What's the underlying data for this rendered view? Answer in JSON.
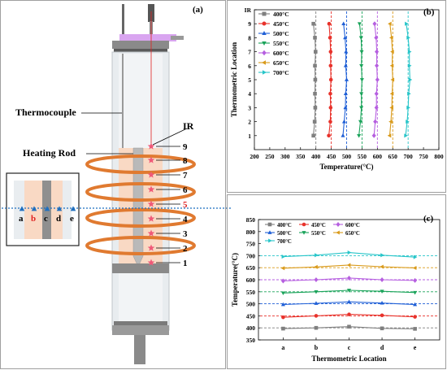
{
  "panel_a": {
    "label": "(a)",
    "thermocouple_label": "Thermocouple",
    "heating_rod_label": "Heating Rod",
    "ir_label": "IR",
    "point_numbers": [
      "1",
      "2",
      "3",
      "4",
      "5",
      "6",
      "7",
      "8",
      "9"
    ],
    "highlight_point": "5",
    "inset_letters": [
      "a",
      "b",
      "c",
      "d",
      "e"
    ],
    "highlight_letter": "b",
    "colors": {
      "coil": "#e07a30",
      "tube_fill": "#f9d9c4",
      "glass": "#e8ecef",
      "rod": "#b9b9b9",
      "star": "#f05a78",
      "highlight": "#e02020",
      "dashed_line": "#1f6fbf",
      "laser": "#e02020",
      "cap": "#d9a5f0"
    }
  },
  "panel_b": {
    "label": "(b)",
    "chart_data": {
      "type": "line",
      "orientation": "vertical profile",
      "xlabel": "Temperature(°C)",
      "ylabel": "Thermometric Location",
      "xlim": [
        200,
        800
      ],
      "x_ticks": [
        "200",
        "250",
        "300",
        "350",
        "400",
        "450",
        "500",
        "550",
        "600",
        "650",
        "700",
        "750",
        "800"
      ],
      "ylim": [
        0,
        10
      ],
      "y_ticks": [
        "1",
        "2",
        "3",
        "4",
        "5",
        "6",
        "7",
        "8",
        "9",
        "IR"
      ],
      "legend_position": "top-left",
      "reference_lines": [
        400,
        450,
        500,
        550,
        600,
        650,
        700
      ],
      "series": [
        {
          "name": "400°C",
          "color": "#7f7f7f",
          "marker": "square",
          "x": [
            392,
            396,
            398,
            397,
            398,
            397,
            399,
            397,
            392
          ],
          "y": [
            1,
            2,
            3,
            4,
            5,
            6,
            7,
            8,
            9
          ]
        },
        {
          "name": "450°C",
          "color": "#e8322b",
          "marker": "circle",
          "x": [
            442,
            447,
            448,
            447,
            449,
            448,
            448,
            446,
            443
          ],
          "y": [
            1,
            2,
            3,
            4,
            5,
            6,
            7,
            8,
            9
          ]
        },
        {
          "name": "500°C",
          "color": "#1f5fd6",
          "marker": "triangle-up",
          "x": [
            488,
            492,
            496,
            497,
            500,
            497,
            498,
            495,
            490
          ],
          "y": [
            1,
            2,
            3,
            4,
            5,
            6,
            7,
            8,
            9
          ]
        },
        {
          "name": "550°C",
          "color": "#1aa35a",
          "marker": "triangle-down",
          "x": [
            540,
            545,
            548,
            548,
            550,
            548,
            549,
            547,
            542
          ],
          "y": [
            1,
            2,
            3,
            4,
            5,
            6,
            7,
            8,
            9
          ]
        },
        {
          "name": "600°C",
          "color": "#b65fe0",
          "marker": "diamond",
          "x": [
            589,
            593,
            597,
            597,
            600,
            598,
            598,
            596,
            591
          ],
          "y": [
            1,
            2,
            3,
            4,
            5,
            6,
            7,
            8,
            9
          ]
        },
        {
          "name": "650°C",
          "color": "#d99a1a",
          "marker": "triangle-left",
          "x": [
            640,
            644,
            647,
            648,
            650,
            648,
            649,
            646,
            641
          ],
          "y": [
            1,
            2,
            3,
            4,
            5,
            6,
            7,
            8,
            9
          ]
        },
        {
          "name": "700°C",
          "color": "#27c5c9",
          "marker": "triangle-right",
          "x": [
            692,
            697,
            700,
            702,
            706,
            704,
            704,
            700,
            694
          ],
          "y": [
            1,
            2,
            3,
            4,
            5,
            6,
            7,
            8,
            9
          ]
        }
      ]
    }
  },
  "panel_c": {
    "label": "(c)",
    "chart_data": {
      "type": "line",
      "xlabel": "Thermometric Location",
      "ylabel": "Temperature(°C)",
      "categories": [
        "a",
        "b",
        "c",
        "d",
        "e"
      ],
      "ylim": [
        350,
        850
      ],
      "y_ticks": [
        "350",
        "400",
        "450",
        "500",
        "550",
        "600",
        "650",
        "700",
        "750",
        "800",
        "850"
      ],
      "legend_position": "top-left",
      "reference_lines": [
        400,
        450,
        500,
        550,
        600,
        650,
        700
      ],
      "series": [
        {
          "name": "400°C",
          "color": "#7f7f7f",
          "marker": "square",
          "values": [
            397,
            400,
            405,
            398,
            396
          ]
        },
        {
          "name": "450°C",
          "color": "#e8322b",
          "marker": "circle",
          "values": [
            444,
            450,
            456,
            452,
            446
          ]
        },
        {
          "name": "500°C",
          "color": "#1f5fd6",
          "marker": "triangle-up",
          "values": [
            497,
            502,
            508,
            503,
            497
          ]
        },
        {
          "name": "550°C",
          "color": "#1aa35a",
          "marker": "triangle-down",
          "values": [
            545,
            550,
            556,
            552,
            547
          ]
        },
        {
          "name": "600°C",
          "color": "#b65fe0",
          "marker": "diamond",
          "values": [
            595,
            600,
            607,
            600,
            597
          ]
        },
        {
          "name": "650°C",
          "color": "#d99a1a",
          "marker": "triangle-left",
          "values": [
            648,
            653,
            661,
            654,
            649
          ]
        },
        {
          "name": "700°C",
          "color": "#27c5c9",
          "marker": "triangle-right",
          "values": [
            696,
            702,
            713,
            702,
            694
          ]
        }
      ]
    }
  }
}
